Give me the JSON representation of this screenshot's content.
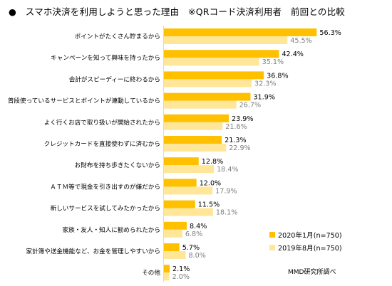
{
  "chart_data": {
    "type": "bar",
    "orientation": "horizontal",
    "title": "●　スマホ決済を利用しようと思った理由　※QRコード決済利用者　前回との比較",
    "categories": [
      "ポイントがたくさん貯まるから",
      "キャンペーンを知って興味を持ったから",
      "会計がスピーディーに終わるから",
      "普段使っているサービスとポイントが連動しているから",
      "よく行くお店で取り扱いが開始されたから",
      "クレジットカードを直接使わずに済むから",
      "お財布を持ち歩きたくないから",
      "ＡＴＭ等で現金を引き出すのが嫌だから",
      "新しいサービスを試してみたかったから",
      "家族・友人・知人に勧められたから",
      "家計簿や送金機能など、お金を管理しやすいから",
      "その他"
    ],
    "series": [
      {
        "name": "2020年1月(n=750)",
        "color": "#ffc000",
        "values": [
          56.3,
          42.4,
          36.8,
          31.9,
          23.9,
          21.3,
          12.8,
          12.0,
          11.5,
          8.4,
          5.7,
          2.1
        ],
        "labels": [
          "56.3%",
          "42.4%",
          "36.8%",
          "31.9%",
          "23.9%",
          "21.3%",
          "12.8%",
          "12.0%",
          "11.5%",
          "8.4%",
          "5.7%",
          "2.1%"
        ]
      },
      {
        "name": "2019年8月(n=750)",
        "color": "#ffe699",
        "values": [
          45.5,
          35.1,
          32.3,
          26.7,
          21.6,
          22.9,
          18.4,
          17.9,
          18.1,
          6.8,
          8.0,
          2.0
        ],
        "labels": [
          "45.5%",
          "35.1%",
          "32.3%",
          "26.7%",
          "21.6%",
          "22.9%",
          "18.4%",
          "17.9%",
          "18.1%",
          "6.8%",
          "8.0%",
          "2.0%"
        ]
      }
    ],
    "xlim": [
      0,
      60
    ],
    "grid": false,
    "legend_position": "bottom-right",
    "source": "MMD研究所調べ"
  }
}
